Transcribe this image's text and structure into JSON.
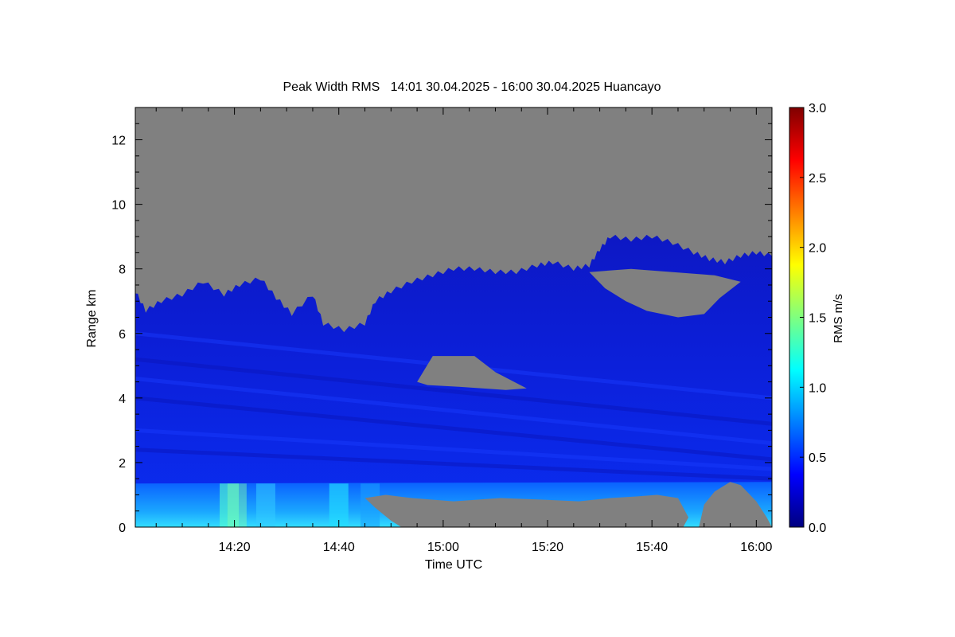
{
  "chart_data": {
    "type": "heatmap",
    "title": "Peak Width RMS   14:01 30.04.2025 - 16:00 30.04.2025 Huancayo",
    "xlabel": "Time UTC",
    "ylabel": "Range km",
    "x_range_minutes": [
      841,
      963
    ],
    "x_ticks": [
      {
        "minute": 860,
        "label": "14:20"
      },
      {
        "minute": 880,
        "label": "14:40"
      },
      {
        "minute": 900,
        "label": "15:00"
      },
      {
        "minute": 920,
        "label": "15:20"
      },
      {
        "minute": 940,
        "label": "15:40"
      },
      {
        "minute": 960,
        "label": "16:00"
      }
    ],
    "ylim": [
      0,
      13
    ],
    "y_ticks": [
      0,
      2,
      4,
      6,
      8,
      10,
      12
    ],
    "colorbar": {
      "label": "RMS m/s",
      "range": [
        0,
        3
      ],
      "ticks": [
        "0.0",
        "0.5",
        "1.0",
        "1.5",
        "2.0",
        "2.5",
        "3.0"
      ],
      "stops": [
        "#00007f",
        "#0000ff",
        "#007fff",
        "#00ffff",
        "#7fff7f",
        "#ffff00",
        "#ff7f00",
        "#ff0000",
        "#7f0000"
      ]
    },
    "no_data_color": "#808080",
    "data_top_km": [
      [
        841,
        7.3
      ],
      [
        843,
        6.7
      ],
      [
        846,
        7.0
      ],
      [
        850,
        7.2
      ],
      [
        854,
        7.6
      ],
      [
        858,
        7.2
      ],
      [
        861,
        7.5
      ],
      [
        865,
        7.7
      ],
      [
        868,
        7.1
      ],
      [
        871,
        6.6
      ],
      [
        875,
        7.2
      ],
      [
        877,
        6.3
      ],
      [
        881,
        6.1
      ],
      [
        885,
        6.3
      ],
      [
        887,
        7.0
      ],
      [
        890,
        7.3
      ],
      [
        894,
        7.6
      ],
      [
        898,
        7.8
      ],
      [
        902,
        8.0
      ],
      [
        906,
        8.0
      ],
      [
        910,
        7.9
      ],
      [
        914,
        7.9
      ],
      [
        918,
        8.1
      ],
      [
        921,
        8.2
      ],
      [
        925,
        8.0
      ],
      [
        928,
        8.1
      ],
      [
        930,
        8.6
      ],
      [
        932,
        9.0
      ],
      [
        936,
        8.9
      ],
      [
        940,
        9.0
      ],
      [
        944,
        8.8
      ],
      [
        948,
        8.5
      ],
      [
        951,
        8.3
      ],
      [
        954,
        8.2
      ],
      [
        957,
        8.4
      ],
      [
        960,
        8.5
      ],
      [
        963,
        8.4
      ]
    ],
    "gaps": [
      {
        "points": [
          [
            895,
            4.5
          ],
          [
            898,
            5.3
          ],
          [
            906,
            5.3
          ],
          [
            910,
            4.8
          ],
          [
            916,
            4.3
          ],
          [
            912,
            4.25
          ],
          [
            903,
            4.35
          ],
          [
            897,
            4.4
          ]
        ]
      },
      {
        "points": [
          [
            928,
            7.9
          ],
          [
            931,
            7.4
          ],
          [
            935,
            7.0
          ],
          [
            939,
            6.7
          ],
          [
            945,
            6.5
          ],
          [
            950,
            6.6
          ],
          [
            953,
            7.1
          ],
          [
            957,
            7.6
          ],
          [
            952,
            7.8
          ],
          [
            944,
            7.9
          ],
          [
            936,
            8.0
          ]
        ]
      },
      {
        "points": [
          [
            892,
            0
          ],
          [
            890,
            0.2
          ],
          [
            887,
            0.6
          ],
          [
            885,
            0.9
          ],
          [
            889,
            1.0
          ],
          [
            894,
            0.9
          ],
          [
            902,
            0.8
          ],
          [
            911,
            0.9
          ],
          [
            919,
            0.85
          ],
          [
            926,
            0.8
          ],
          [
            932,
            0.9
          ],
          [
            937,
            0.95
          ],
          [
            941,
            1.0
          ],
          [
            945,
            0.9
          ],
          [
            947,
            0.3
          ],
          [
            946,
            0
          ]
        ]
      },
      {
        "points": [
          [
            949,
            0
          ],
          [
            950,
            0.7
          ],
          [
            952,
            1.1
          ],
          [
            955,
            1.4
          ],
          [
            957,
            1.3
          ],
          [
            960,
            0.8
          ],
          [
            962,
            0.3
          ],
          [
            963,
            0
          ]
        ]
      }
    ],
    "surface_layer_km": 1.35
  }
}
